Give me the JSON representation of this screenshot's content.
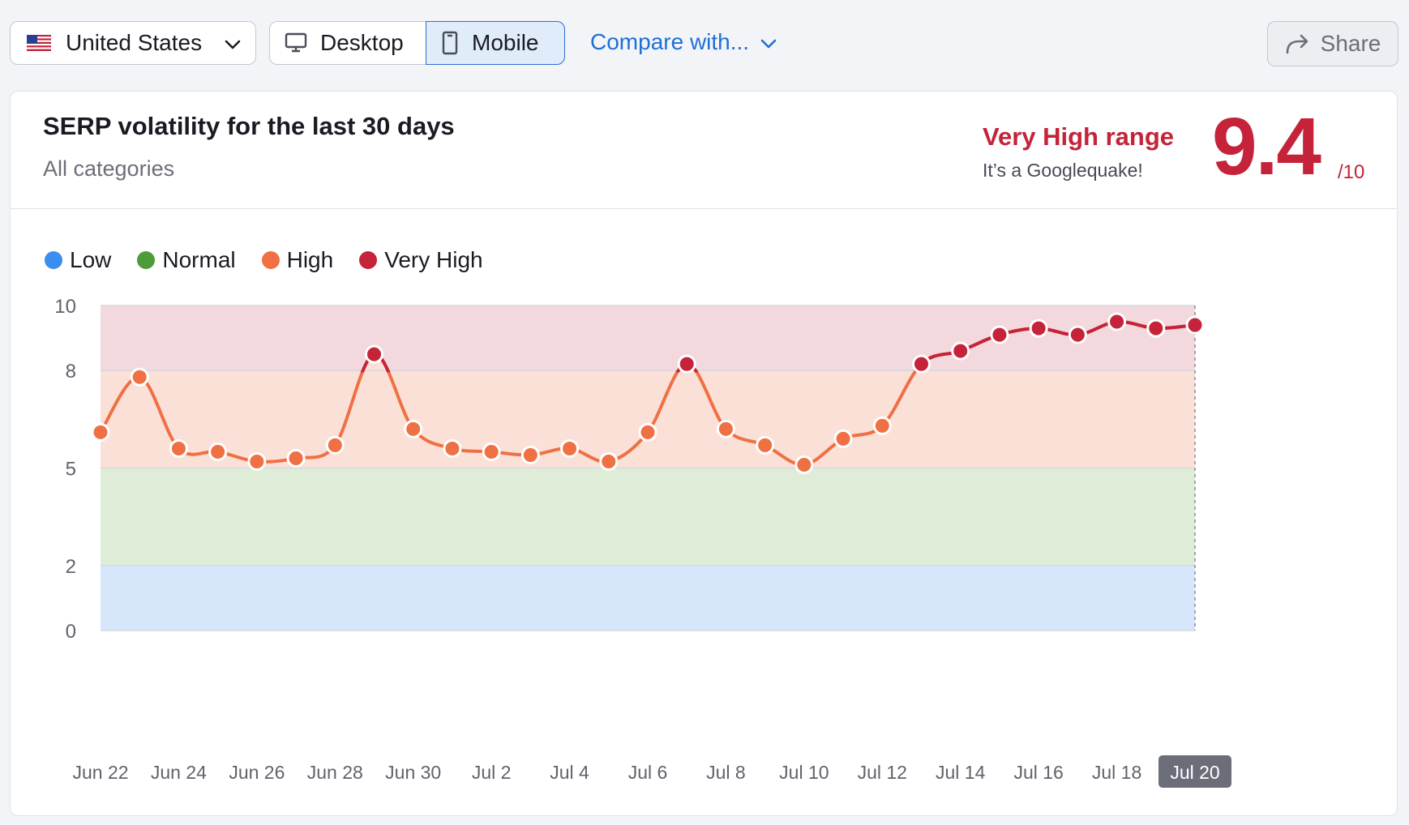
{
  "toolbar": {
    "country": "United States",
    "device_desktop": "Desktop",
    "device_mobile": "Mobile",
    "compare": "Compare with...",
    "share": "Share"
  },
  "card": {
    "title": "SERP volatility for the last 30 days",
    "subtitle": "All categories",
    "range_label": "Very High range",
    "range_sub": "It’s a Googlequake!",
    "score": "9.4",
    "score_max": "/10"
  },
  "legend": [
    {
      "label": "Low",
      "color": "#3a8ef0"
    },
    {
      "label": "Normal",
      "color": "#4e9b3a"
    },
    {
      "label": "High",
      "color": "#ef7043"
    },
    {
      "label": "Very High",
      "color": "#c4233a"
    }
  ],
  "chart_data": {
    "type": "line",
    "y_ticks": [
      0,
      2,
      5,
      8,
      10
    ],
    "ylim": [
      0,
      10
    ],
    "x_tick_labels": [
      "Jun 22",
      "Jun 24",
      "Jun 26",
      "Jun 28",
      "Jun 30",
      "Jul 2",
      "Jul 4",
      "Jul 6",
      "Jul 8",
      "Jul 10",
      "Jul 12",
      "Jul 14",
      "Jul 16",
      "Jul 18",
      "Jul 20"
    ],
    "highlighted_tick": "Jul 20",
    "bands": [
      {
        "name": "Low",
        "from": 0,
        "to": 2,
        "color": "#d6e6fb"
      },
      {
        "name": "Normal",
        "from": 2,
        "to": 5,
        "color": "#deecd8"
      },
      {
        "name": "High",
        "from": 5,
        "to": 8,
        "color": "#fbe0d8"
      },
      {
        "name": "Very High",
        "from": 8,
        "to": 10,
        "color": "#f3d8dd"
      }
    ],
    "series": [
      {
        "x": [
          "Jun 22",
          "Jun 23",
          "Jun 24",
          "Jun 25",
          "Jun 26",
          "Jun 27",
          "Jun 28",
          "Jun 29",
          "Jun 30",
          "Jul 1",
          "Jul 2",
          "Jul 3",
          "Jul 4",
          "Jul 5",
          "Jul 6",
          "Jul 7",
          "Jul 8",
          "Jul 9",
          "Jul 10",
          "Jul 11",
          "Jul 12",
          "Jul 13",
          "Jul 14",
          "Jul 15",
          "Jul 16",
          "Jul 17",
          "Jul 18",
          "Jul 19",
          "Jul 20"
        ],
        "values": [
          6.1,
          7.8,
          5.6,
          5.5,
          5.2,
          5.3,
          5.7,
          8.5,
          6.2,
          5.6,
          5.5,
          5.4,
          5.6,
          5.2,
          6.1,
          8.2,
          6.2,
          5.7,
          5.1,
          5.9,
          6.3,
          8.2,
          8.6,
          9.1,
          9.3,
          9.1,
          9.5,
          9.3,
          9.4
        ]
      }
    ]
  }
}
